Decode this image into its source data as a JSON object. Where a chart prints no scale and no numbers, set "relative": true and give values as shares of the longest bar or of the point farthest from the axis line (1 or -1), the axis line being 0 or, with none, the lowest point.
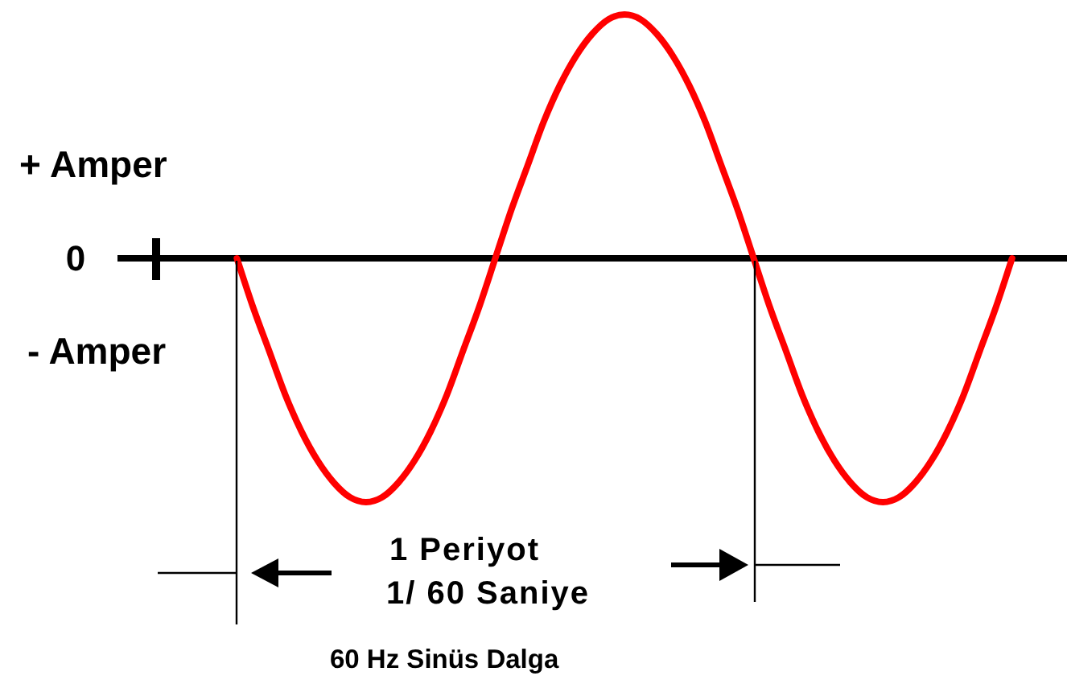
{
  "chart_data": {
    "type": "line",
    "relative": true,
    "title": "60 Hz Sinüs Dalga",
    "categories": [
      null,
      null,
      null,
      null,
      null,
      null,
      null,
      null,
      null,
      null,
      null,
      null,
      null,
      null,
      null,
      null,
      null,
      null,
      null,
      null,
      null,
      null,
      null,
      null,
      null,
      null,
      null,
      null,
      null,
      null,
      null,
      null,
      null,
      null,
      null,
      null,
      null,
      null,
      null,
      null,
      null,
      null,
      null,
      null,
      null,
      null,
      null,
      null,
      null,
      null,
      null,
      null,
      null,
      null,
      null,
      null,
      null
    ],
    "series": [
      {
        "color": "#ff0000",
        "values": [
          null,
          null,
          null,
          null,
          null,
          0,
          -0.2,
          -0.38,
          -0.56,
          -0.71,
          -0.83,
          -0.92,
          -0.98,
          -1,
          -0.98,
          -0.92,
          -0.83,
          -0.71,
          -0.56,
          -0.38,
          -0.2,
          0,
          0.2,
          0.38,
          0.56,
          0.71,
          0.83,
          0.92,
          0.98,
          1,
          0.98,
          0.92,
          0.83,
          0.71,
          0.56,
          0.38,
          0.2,
          0,
          -0.2,
          -0.38,
          -0.56,
          -0.71,
          -0.83,
          -0.92,
          -0.98,
          -1,
          -0.98,
          -0.92,
          -0.83,
          -0.71,
          -0.56,
          -0.38,
          -0.2,
          0,
          null,
          null,
          null
        ]
      }
    ],
    "marker": "none",
    "annotations": [
      "+ Amper",
      "0",
      "- Amper",
      "1 Periyot",
      "1/ 60 Saniye"
    ]
  }
}
